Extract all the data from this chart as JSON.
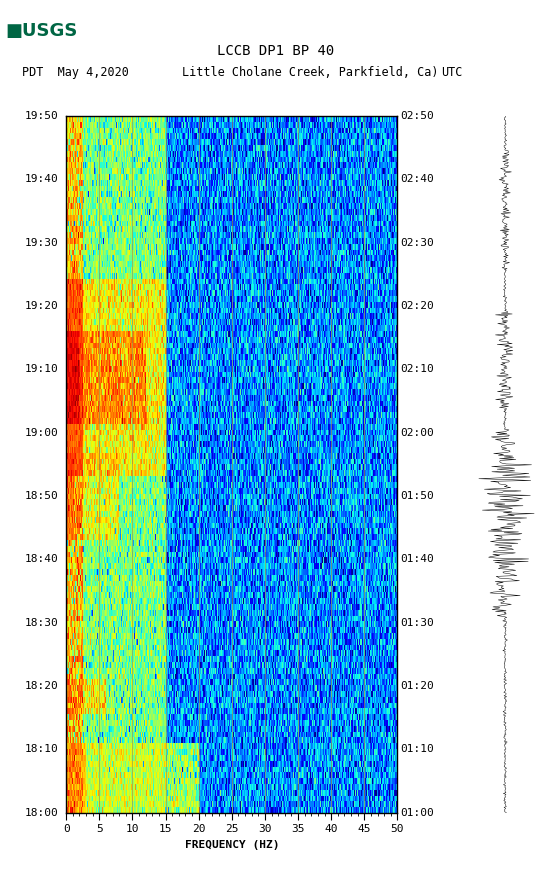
{
  "title_line1": "LCCB DP1 BP 40",
  "title_line2_left": "PDT  May 4,2020",
  "title_line2_mid": "Little Cholane Creek, Parkfield, Ca)",
  "title_line2_right": "UTC",
  "freq_min": 0,
  "freq_max": 50,
  "freq_ticks": [
    0,
    5,
    10,
    15,
    20,
    25,
    30,
    35,
    40,
    45,
    50
  ],
  "xlabel": "FREQUENCY (HZ)",
  "left_time_labels": [
    "18:00",
    "18:10",
    "18:20",
    "18:30",
    "18:40",
    "18:50",
    "19:00",
    "19:10",
    "19:20",
    "19:30",
    "19:40",
    "19:50"
  ],
  "right_time_labels": [
    "01:00",
    "01:10",
    "01:20",
    "01:30",
    "01:40",
    "01:50",
    "02:00",
    "02:10",
    "02:20",
    "02:30",
    "02:40",
    "02:50"
  ],
  "n_time_steps": 120,
  "n_freq_bins": 500,
  "fig_bg": "#ffffff",
  "usgs_green": "#006644",
  "vertical_lines_x": [
    5,
    10,
    15,
    20,
    25,
    30,
    35,
    40,
    45
  ]
}
